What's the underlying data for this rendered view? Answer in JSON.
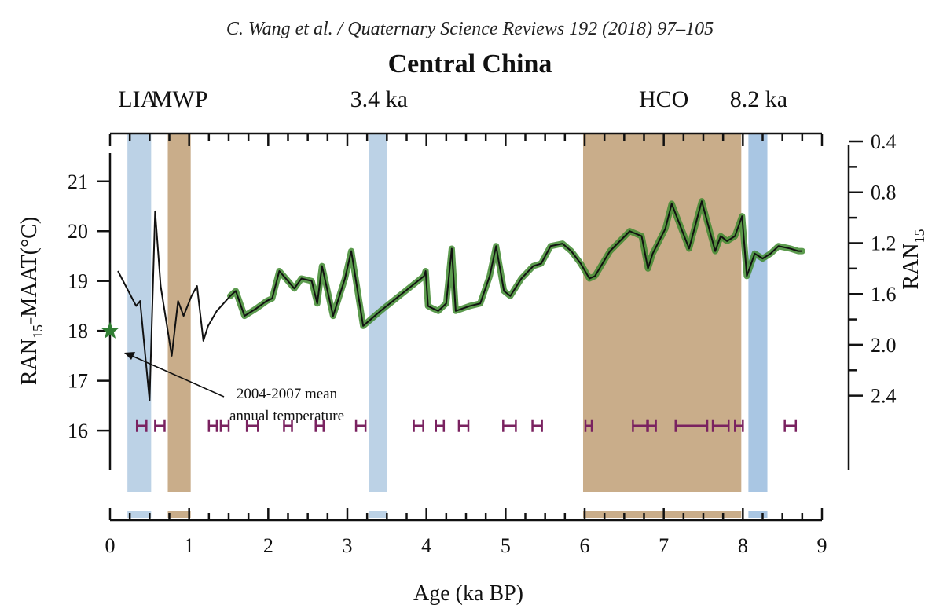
{
  "citation": "C. Wang et al. / Quaternary Science Reviews 192 (2018) 97–105",
  "periods": [
    {
      "label": "LIA",
      "x": 0.35
    },
    {
      "label": "MWP",
      "x": 0.88
    },
    {
      "label": "3.4 ka",
      "x": 3.4
    },
    {
      "label": "HCO",
      "x": 7.0
    },
    {
      "label": "8.2 ka",
      "x": 8.2
    }
  ],
  "colors": {
    "cold_band": "#bcd2e6",
    "cold_band_strong": "#a9c6e3",
    "warm_band": "#c9ad8a",
    "line": "#111111",
    "envelope": "#3f8a2f",
    "star": "#2f7d32",
    "age_marker": "#7a2260"
  },
  "chart_data": {
    "type": "line",
    "title": "Central China",
    "xlabel": "Age (ka BP)",
    "ylabel": "RAN15-MAAT(°C)",
    "ylabel_parts": {
      "main": "RAN",
      "sub": "15",
      "rest": "-MAAT(°C)"
    },
    "y2label_parts": {
      "main": "RAN",
      "sub": "15"
    },
    "xlim": [
      0,
      9
    ],
    "ylim": [
      15.45,
      21.8
    ],
    "x_ticks": [
      0,
      1,
      2,
      3,
      4,
      5,
      6,
      7,
      8,
      9
    ],
    "y_ticks": [
      16,
      17,
      18,
      19,
      20,
      21
    ],
    "y2_ticks": [
      {
        "label": "0.4",
        "y": 21.8
      },
      {
        "label": "0.8",
        "y": 20.78
      },
      {
        "label": "1.2",
        "y": 19.76
      },
      {
        "label": "1.6",
        "y": 18.74
      },
      {
        "label": "2.0",
        "y": 17.72
      },
      {
        "label": "2.4",
        "y": 16.7
      }
    ],
    "bands": [
      {
        "kind": "cold",
        "x0": 0.22,
        "x1": 0.52
      },
      {
        "kind": "warm",
        "x0": 0.73,
        "x1": 1.02
      },
      {
        "kind": "cold",
        "x0": 3.27,
        "x1": 3.5
      },
      {
        "kind": "warm",
        "x0": 5.98,
        "x1": 7.98
      },
      {
        "kind": "cold_strong",
        "x0": 8.07,
        "x1": 8.31
      }
    ],
    "series": [
      {
        "x": [
          0.1,
          0.33,
          0.38,
          0.5,
          0.57,
          0.64,
          0.78,
          0.86,
          0.93,
          1.03,
          1.1,
          1.18,
          1.24,
          1.35,
          1.52,
          1.59,
          1.7,
          1.85,
          1.98,
          2.05,
          2.14,
          2.25,
          2.33,
          2.42,
          2.55,
          2.62,
          2.68,
          2.82,
          2.97,
          3.05,
          3.2,
          3.42,
          3.97,
          3.99,
          4.02,
          4.08,
          4.15,
          4.25,
          4.32,
          4.37,
          4.55,
          4.68,
          4.8,
          4.88,
          4.98,
          5.06,
          5.2,
          5.35,
          5.45,
          5.57,
          5.72,
          5.83,
          5.95,
          6.06,
          6.13,
          6.32,
          6.57,
          6.72,
          6.8,
          6.86,
          7.02,
          7.1,
          7.32,
          7.48,
          7.65,
          7.72,
          7.8,
          7.9,
          7.99,
          8.05,
          8.15,
          8.25,
          8.35,
          8.45,
          8.6,
          8.7,
          8.75
        ],
        "y": [
          19.2,
          18.5,
          18.6,
          16.6,
          20.4,
          18.9,
          17.5,
          18.6,
          18.3,
          18.7,
          18.9,
          17.8,
          18.1,
          18.4,
          18.7,
          18.8,
          18.3,
          18.45,
          18.6,
          18.65,
          19.2,
          19.0,
          18.85,
          19.05,
          19.0,
          18.55,
          19.3,
          18.3,
          19.05,
          19.6,
          18.1,
          18.4,
          19.1,
          19.2,
          18.5,
          18.45,
          18.4,
          18.55,
          19.65,
          18.4,
          18.5,
          18.55,
          19.1,
          19.7,
          18.8,
          18.7,
          19.05,
          19.3,
          19.35,
          19.7,
          19.75,
          19.6,
          19.35,
          19.05,
          19.1,
          19.6,
          20.0,
          19.9,
          19.25,
          19.55,
          20.05,
          20.55,
          19.65,
          20.6,
          19.6,
          19.9,
          19.8,
          19.9,
          20.3,
          19.1,
          19.55,
          19.45,
          19.55,
          19.7,
          19.65,
          19.6,
          19.6
        ]
      }
    ],
    "envelope_from_x": 1.5,
    "modern_mean": {
      "x": 0.0,
      "y": 18.0
    },
    "annotation": {
      "line1": "2004-2007 mean",
      "line2": "annual temperature"
    },
    "age_markers": [
      {
        "x": 0.4,
        "half": 0.06
      },
      {
        "x": 0.63,
        "half": 0.06
      },
      {
        "x": 1.3,
        "half": 0.05
      },
      {
        "x": 1.45,
        "half": 0.05
      },
      {
        "x": 1.8,
        "half": 0.07
      },
      {
        "x": 2.25,
        "half": 0.05
      },
      {
        "x": 2.65,
        "half": 0.05
      },
      {
        "x": 3.17,
        "half": 0.06
      },
      {
        "x": 3.9,
        "half": 0.06
      },
      {
        "x": 4.17,
        "half": 0.05
      },
      {
        "x": 4.47,
        "half": 0.06
      },
      {
        "x": 5.05,
        "half": 0.08
      },
      {
        "x": 5.4,
        "half": 0.06
      },
      {
        "x": 6.05,
        "half": 0.04
      },
      {
        "x": 6.7,
        "half": 0.09
      },
      {
        "x": 6.85,
        "half": 0.05
      },
      {
        "x": 7.35,
        "half": 0.2
      },
      {
        "x": 7.72,
        "half": 0.1
      },
      {
        "x": 7.95,
        "half": 0.05
      },
      {
        "x": 8.6,
        "half": 0.07
      }
    ],
    "age_marker_y": 16.1
  }
}
